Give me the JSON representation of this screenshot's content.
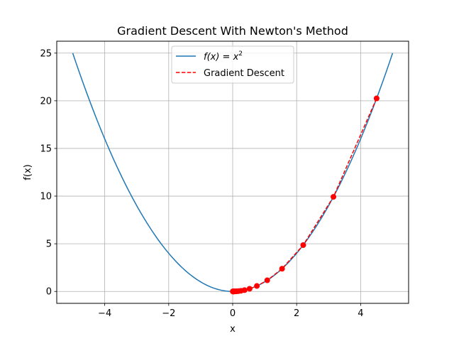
{
  "chart_data": {
    "type": "line",
    "title": "Gradient Descent With Newton's Method",
    "xlabel": "x",
    "ylabel": "f(x)",
    "xlim": [
      -5.5,
      5.5
    ],
    "ylim": [
      -1.25,
      26.25
    ],
    "x_ticks": [
      -4,
      -2,
      0,
      2,
      4
    ],
    "y_ticks": [
      0,
      5,
      10,
      15,
      20,
      25
    ],
    "grid": true,
    "legend_position": "top-center",
    "series": [
      {
        "name": "f(x) = x²",
        "legend_prefix": "f(x) = x",
        "legend_sup": "2",
        "kind": "function",
        "function": "x^2",
        "x_range": [
          -5,
          5
        ],
        "color": "#1f77b4",
        "line_style": "solid"
      },
      {
        "name": "Gradient Descent",
        "kind": "points",
        "color": "#ff0000",
        "line_style": "dashed",
        "marker": "circle",
        "x": [
          4.5,
          3.15,
          2.205,
          1.5435,
          1.08045,
          0.756315,
          0.52942,
          0.370594,
          0.259416,
          0.181591,
          0.127114,
          0.08898,
          0.062286,
          0.0436,
          0.03052,
          0.021364,
          0.014955,
          0.010468,
          0.007328,
          0.005129
        ],
        "y": [
          20.25,
          9.9225,
          4.862,
          2.3824,
          1.1674,
          0.572,
          0.2803,
          0.1373,
          0.0673,
          0.033,
          0.0162,
          0.0079,
          0.0039,
          0.0019,
          0.0009,
          0.0005,
          0.0002,
          0.0001,
          0.0001,
          0.0
        ]
      }
    ]
  }
}
